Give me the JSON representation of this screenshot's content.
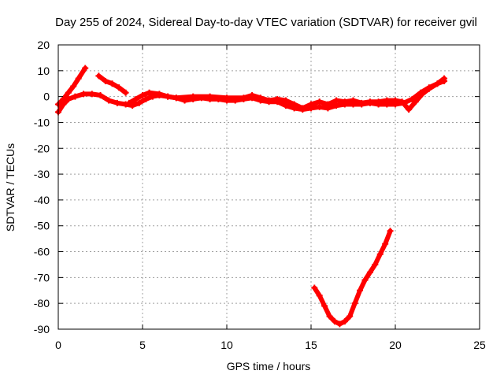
{
  "chart_data": {
    "type": "scatter",
    "title": "Day 255 of 2024, Sidereal Day-to-day VTEC variation (SDTVAR) for receiver gvil",
    "xlabel": "GPS time / hours",
    "ylabel": "SDTVAR / TECUs",
    "xlim": [
      0,
      25
    ],
    "ylim": [
      -90,
      20
    ],
    "xticks": [
      0,
      5,
      10,
      15,
      20,
      25
    ],
    "yticks": [
      -90,
      -80,
      -70,
      -60,
      -50,
      -40,
      -30,
      -20,
      -10,
      0,
      10,
      20
    ],
    "grid": true,
    "marker": "plus",
    "color": "#ff0000",
    "series": [
      {
        "name": "main-band",
        "points": [
          [
            0.0,
            -6
          ],
          [
            0.3,
            -3
          ],
          [
            0.6,
            -1
          ],
          [
            1.0,
            0
          ],
          [
            1.5,
            1
          ],
          [
            2.0,
            1
          ],
          [
            2.5,
            0.5
          ],
          [
            3.0,
            -1.5
          ],
          [
            3.5,
            -2.5
          ],
          [
            4.0,
            -3
          ],
          [
            4.4,
            -3.5
          ],
          [
            4.8,
            -2.5
          ],
          [
            5.2,
            -1
          ],
          [
            5.6,
            0
          ],
          [
            6.0,
            0.5
          ],
          [
            6.5,
            0
          ],
          [
            7.0,
            -0.5
          ],
          [
            7.5,
            -1.5
          ],
          [
            8.0,
            -1
          ],
          [
            8.5,
            -0.5
          ],
          [
            9.0,
            -1
          ],
          [
            9.5,
            -1
          ],
          [
            10.0,
            -1.5
          ],
          [
            10.5,
            -1.5
          ],
          [
            11.0,
            -1
          ],
          [
            11.5,
            -0.5
          ],
          [
            12.0,
            -1.5
          ],
          [
            12.5,
            -2
          ],
          [
            13.0,
            -2
          ],
          [
            13.5,
            -3.5
          ],
          [
            14.0,
            -4.5
          ],
          [
            14.5,
            -5
          ],
          [
            15.0,
            -4.5
          ],
          [
            15.5,
            -4
          ],
          [
            16.0,
            -4.5
          ],
          [
            16.5,
            -3.5
          ],
          [
            17.0,
            -3
          ],
          [
            17.5,
            -3
          ],
          [
            18.0,
            -3
          ],
          [
            18.5,
            -2.5
          ],
          [
            19.0,
            -3
          ],
          [
            19.5,
            -3
          ],
          [
            20.0,
            -3
          ],
          [
            20.5,
            -2.5
          ],
          [
            21.0,
            -1
          ],
          [
            21.5,
            1.5
          ],
          [
            22.0,
            3.5
          ],
          [
            22.5,
            5
          ],
          [
            22.9,
            6
          ]
        ]
      },
      {
        "name": "upper-band-left",
        "points": [
          [
            0.0,
            -3
          ],
          [
            0.3,
            -1
          ],
          [
            0.6,
            1.5
          ],
          [
            0.9,
            4
          ],
          [
            1.2,
            7
          ],
          [
            1.6,
            11
          ]
        ]
      },
      {
        "name": "upper-band-mid",
        "points": [
          [
            2.4,
            8
          ],
          [
            2.8,
            6
          ],
          [
            3.2,
            5
          ],
          [
            3.6,
            3.5
          ],
          [
            4.0,
            1.5
          ]
        ]
      },
      {
        "name": "second-band",
        "points": [
          [
            4.2,
            -2.5
          ],
          [
            4.6,
            -1
          ],
          [
            5.0,
            0.5
          ],
          [
            5.4,
            1.5
          ],
          [
            6.0,
            1
          ],
          [
            6.5,
            0
          ],
          [
            7.0,
            -0.5
          ],
          [
            8.0,
            0
          ],
          [
            9.0,
            0
          ],
          [
            10.0,
            -0.5
          ],
          [
            11.0,
            -0.5
          ],
          [
            11.5,
            0.5
          ],
          [
            12.0,
            -0.5
          ],
          [
            12.5,
            -1.5
          ],
          [
            13.0,
            -1
          ],
          [
            13.5,
            -1.5
          ],
          [
            14.0,
            -3
          ],
          [
            14.5,
            -4.5
          ],
          [
            15.0,
            -3
          ],
          [
            15.5,
            -2
          ],
          [
            16.0,
            -3
          ],
          [
            16.5,
            -1.5
          ],
          [
            17.0,
            -2
          ],
          [
            17.5,
            -1.5
          ],
          [
            18.0,
            -2.5
          ],
          [
            18.5,
            -2
          ],
          [
            19.0,
            -2
          ],
          [
            19.5,
            -1.5
          ],
          [
            20.0,
            -1.5
          ],
          [
            20.4,
            -2
          ],
          [
            20.8,
            -5
          ],
          [
            21.2,
            -2
          ],
          [
            21.6,
            1
          ],
          [
            22.0,
            3
          ],
          [
            22.5,
            5
          ],
          [
            22.9,
            7
          ]
        ]
      },
      {
        "name": "low-band",
        "points": [
          [
            15.2,
            -74
          ],
          [
            15.5,
            -77
          ],
          [
            15.8,
            -81
          ],
          [
            16.1,
            -85
          ],
          [
            16.4,
            -87
          ],
          [
            16.7,
            -88
          ],
          [
            17.0,
            -87
          ],
          [
            17.3,
            -85
          ],
          [
            17.6,
            -80
          ],
          [
            17.9,
            -75
          ],
          [
            18.2,
            -71
          ],
          [
            18.5,
            -68
          ],
          [
            18.8,
            -65
          ],
          [
            19.1,
            -61
          ],
          [
            19.4,
            -57
          ],
          [
            19.7,
            -52
          ]
        ]
      }
    ]
  }
}
